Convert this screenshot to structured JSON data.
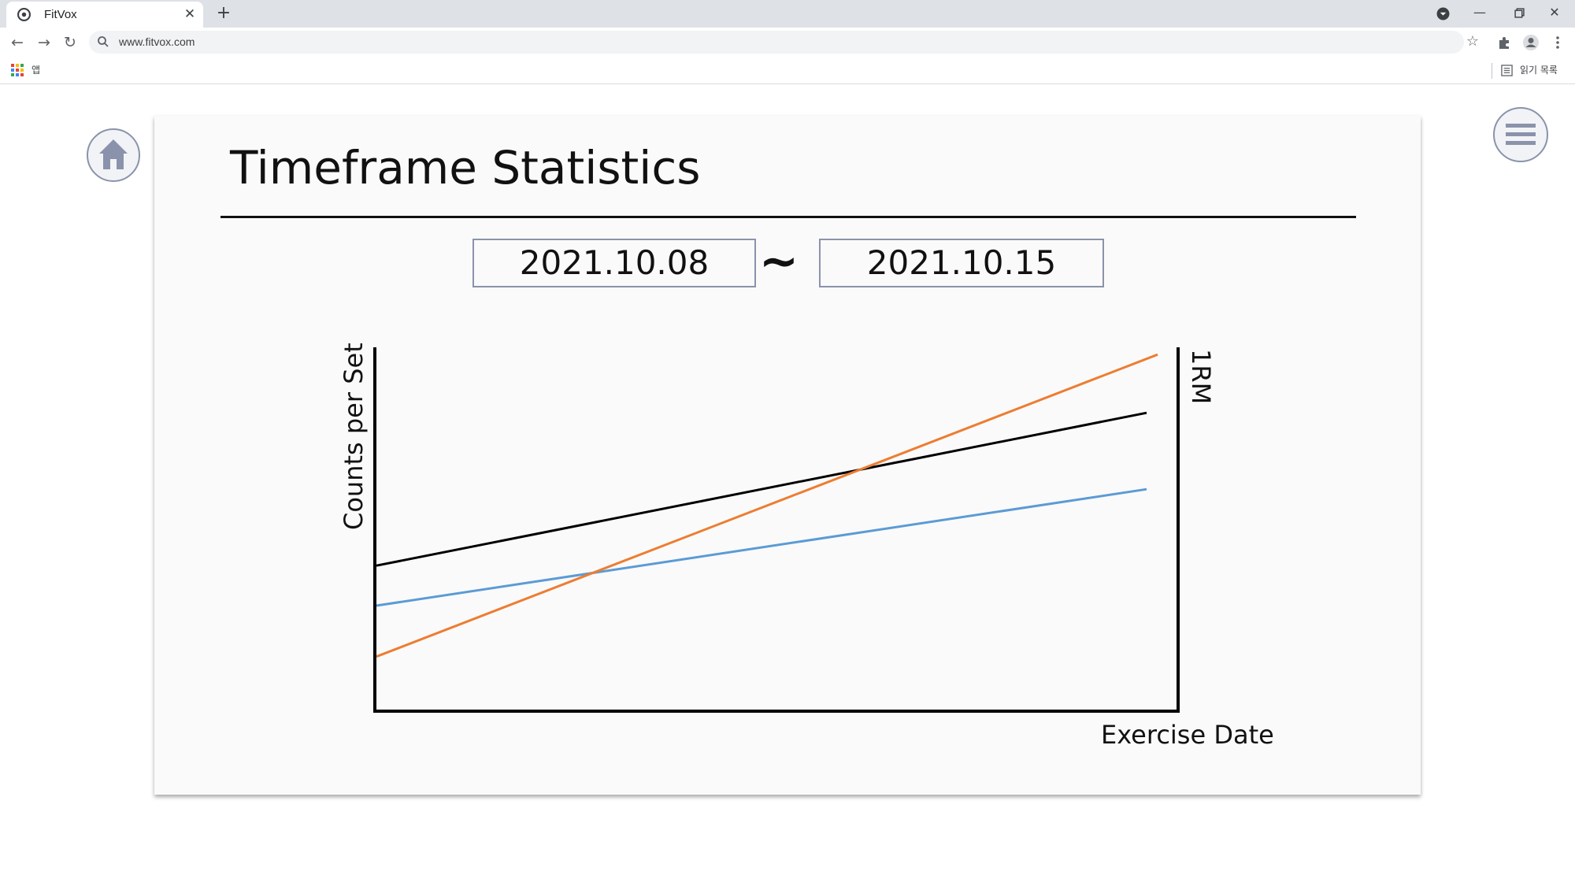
{
  "browser": {
    "tab_title": "FitVox",
    "url": "www.fitvox.com",
    "apps_label": "앱",
    "reading_list_label": "읽기 목록"
  },
  "page": {
    "title": "Timeframe Statistics",
    "date_range": {
      "start": "2021.10.08",
      "separator": "~",
      "end": "2021.10.15"
    }
  },
  "chart_data": {
    "type": "line",
    "xlabel": "Exercise Date",
    "ylabel": "Counts per Set",
    "y2label": "1RM",
    "x": [
      0,
      1
    ],
    "ylim": [
      0,
      1
    ],
    "grid": false,
    "series": [
      {
        "color": "#000000",
        "values": [
          0.4,
          0.82
        ]
      },
      {
        "color": "#5b9bd5",
        "values": [
          0.29,
          0.61
        ]
      },
      {
        "color": "#ed7d31",
        "values": [
          0.15,
          0.98
        ]
      }
    ]
  },
  "colors": {
    "icon": "#8a93ab",
    "card": "#fafafa"
  }
}
